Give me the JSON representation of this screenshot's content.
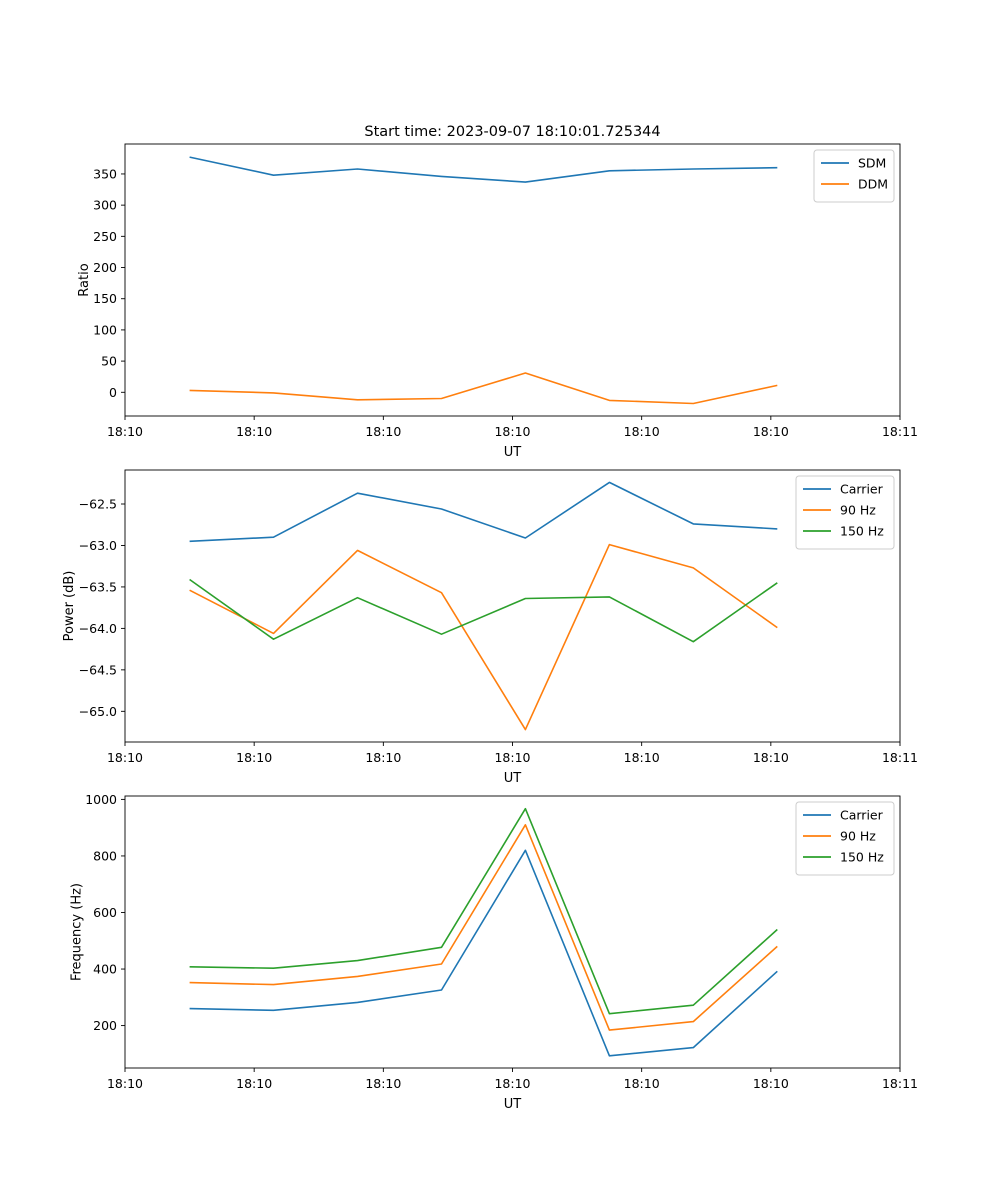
{
  "figure_title": "Start time: 2023-09-07 18:10:01.725344",
  "chart_data": [
    {
      "type": "line",
      "ylabel": "Ratio",
      "xlabel": "UT",
      "xlim": [
        0,
        60
      ],
      "x_tick_positions": [
        0,
        10,
        20,
        30,
        40,
        50,
        60
      ],
      "x_tick_labels": [
        "18:10",
        "18:10",
        "18:10",
        "18:10",
        "18:10",
        "18:10",
        "18:11"
      ],
      "ylim": [
        -38,
        398
      ],
      "yticks": [
        0,
        50,
        100,
        150,
        200,
        250,
        300,
        350
      ],
      "x": [
        5,
        11.5,
        18,
        24.5,
        31,
        37.5,
        44,
        50.5
      ],
      "series": [
        {
          "name": "SDM",
          "color": "#1f77b4",
          "values": [
            377,
            348,
            358,
            346,
            337,
            355,
            358,
            360
          ]
        },
        {
          "name": "DDM",
          "color": "#ff7f0e",
          "values": [
            3,
            -1,
            -12,
            -10,
            31,
            -13,
            -18,
            11
          ]
        }
      ],
      "legend": "top-right"
    },
    {
      "type": "line",
      "ylabel": "Power (dB)",
      "xlabel": "UT",
      "xlim": [
        0,
        60
      ],
      "x_tick_positions": [
        0,
        10,
        20,
        30,
        40,
        50,
        60
      ],
      "x_tick_labels": [
        "18:10",
        "18:10",
        "18:10",
        "18:10",
        "18:10",
        "18:10",
        "18:11"
      ],
      "ylim": [
        -65.37,
        -62.09
      ],
      "yticks": [
        -65.0,
        -64.5,
        -64.0,
        -63.5,
        -63.0,
        -62.5
      ],
      "ytick_labels": [
        "−65.0",
        "−64.5",
        "−64.0",
        "−63.5",
        "−63.0",
        "−62.5"
      ],
      "x": [
        5,
        11.5,
        18,
        24.5,
        31,
        37.5,
        44,
        50.5
      ],
      "series": [
        {
          "name": "Carrier",
          "color": "#1f77b4",
          "values": [
            -62.95,
            -62.9,
            -62.37,
            -62.56,
            -62.91,
            -62.24,
            -62.74,
            -62.8
          ]
        },
        {
          "name": "90 Hz",
          "color": "#ff7f0e",
          "values": [
            -63.54,
            -64.06,
            -63.06,
            -63.57,
            -65.22,
            -62.99,
            -63.27,
            -63.99
          ]
        },
        {
          "name": "150 Hz",
          "color": "#2ca02c",
          "values": [
            -63.41,
            -64.13,
            -63.63,
            -64.07,
            -63.64,
            -63.62,
            -64.16,
            -63.45
          ]
        }
      ],
      "legend": "top-right"
    },
    {
      "type": "line",
      "ylabel": "Frequency (Hz)",
      "xlabel": "UT",
      "xlim": [
        0,
        60
      ],
      "x_tick_positions": [
        0,
        10,
        20,
        30,
        40,
        50,
        60
      ],
      "x_tick_labels": [
        "18:10",
        "18:10",
        "18:10",
        "18:10",
        "18:10",
        "18:10",
        "18:11"
      ],
      "ylim": [
        50,
        1012
      ],
      "yticks": [
        200,
        400,
        600,
        800,
        1000
      ],
      "x": [
        5,
        11.5,
        18,
        24.5,
        31,
        37.5,
        44,
        50.5
      ],
      "series": [
        {
          "name": "Carrier",
          "color": "#1f77b4",
          "values": [
            260,
            254,
            282,
            326,
            820,
            93,
            122,
            392
          ]
        },
        {
          "name": "90 Hz",
          "color": "#ff7f0e",
          "values": [
            352,
            345,
            374,
            418,
            910,
            184,
            214,
            480
          ]
        },
        {
          "name": "150 Hz",
          "color": "#2ca02c",
          "values": [
            408,
            403,
            430,
            477,
            967,
            242,
            272,
            540
          ]
        }
      ],
      "legend": "top-right"
    }
  ]
}
